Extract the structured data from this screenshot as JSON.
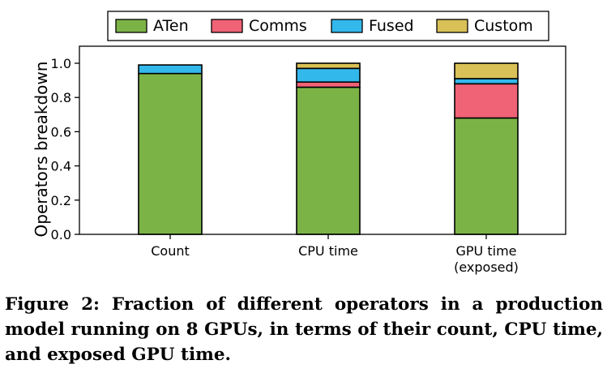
{
  "chart_data": {
    "type": "bar",
    "stacked": true,
    "categories": [
      "Count",
      "CPU time",
      "GPU time\n(exposed)"
    ],
    "series": [
      {
        "name": "ATen",
        "color": "#7cb347",
        "values": [
          0.94,
          0.86,
          0.68
        ]
      },
      {
        "name": "Comms",
        "color": "#f06276",
        "values": [
          0.0,
          0.03,
          0.2
        ]
      },
      {
        "name": "Fused",
        "color": "#33b8ec",
        "values": [
          0.05,
          0.08,
          0.03
        ]
      },
      {
        "name": "Custom",
        "color": "#d9c157",
        "values": [
          0.0,
          0.03,
          0.09
        ]
      }
    ],
    "xlabel": "",
    "ylabel": "Operators breakdown",
    "ylim": [
      0.0,
      1.0
    ],
    "yticks": [
      "0.0",
      "0.2",
      "0.4",
      "0.6",
      "0.8",
      "1.0"
    ],
    "grid": false,
    "legend_position": "top"
  },
  "caption": "Figure 2: Fraction of different operators in a production model running on 8 GPUs, in terms of their count, CPU time, and exposed GPU time."
}
